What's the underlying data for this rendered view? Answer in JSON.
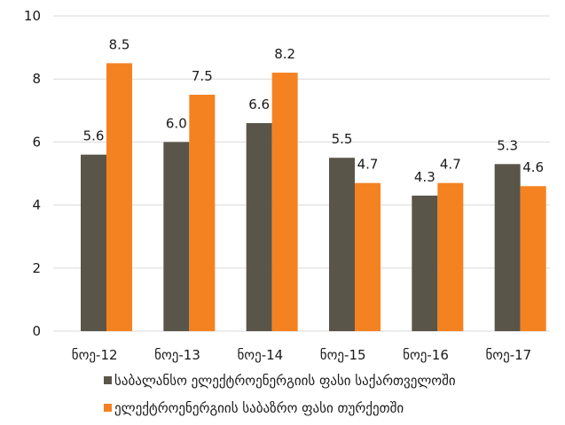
{
  "chart_data": {
    "type": "bar",
    "categories": [
      "ნოე-12",
      "ნოე-13",
      "ნოე-14",
      "ნოე-15",
      "ნოე-16",
      "ნოე-17"
    ],
    "series": [
      {
        "name": "საბალანსო ელექტროენერგიის ფასი საქართველოში",
        "values": [
          5.6,
          6.0,
          6.6,
          5.5,
          4.3,
          5.3
        ],
        "color": "#595549"
      },
      {
        "name": "ელექტროენერგიის საბაზრო ფასი თურქეთში",
        "values": [
          8.5,
          7.5,
          8.2,
          4.7,
          4.7,
          4.6
        ],
        "color": "#F58220"
      }
    ],
    "value_labels": [
      [
        "5.6",
        "6.0",
        "6.6",
        "5.5",
        "4.3",
        "5.3"
      ],
      [
        "8.5",
        "7.5",
        "8.2",
        "4.7",
        "4.7",
        "4.6"
      ]
    ],
    "ylim": [
      0,
      10
    ],
    "yticks": [
      0,
      2,
      4,
      6,
      8,
      10
    ],
    "ytick_labels": [
      "0",
      "2",
      "4",
      "6",
      "8",
      "10"
    ],
    "grid": "horizontal",
    "legend": "bottom"
  }
}
